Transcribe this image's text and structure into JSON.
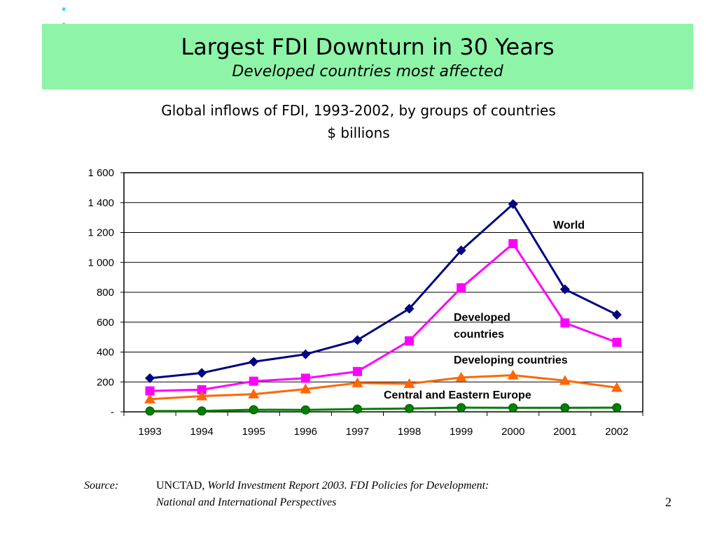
{
  "slide": {
    "title": "Largest FDI Downturn in 30 Years",
    "subtitle": "Developed countries most affected",
    "page_number": "2"
  },
  "chart_data": {
    "type": "line",
    "title": "Global inflows of FDI, 1993-2002, by groups of countries",
    "subtitle": "$ billions",
    "xlabel": "",
    "ylabel": "",
    "ylim": [
      0,
      1600
    ],
    "y_ticks": [
      "-",
      "200",
      "400",
      "600",
      "800",
      "1 000",
      "1 200",
      "1 400",
      "1 600"
    ],
    "categories": [
      "1993",
      "1994",
      "1995",
      "1996",
      "1997",
      "1998",
      "1999",
      "2000",
      "2001",
      "2002"
    ],
    "grid": true,
    "series": [
      {
        "name": "World",
        "color": "#000080",
        "marker": "diamond",
        "values": [
          225,
          260,
          335,
          385,
          480,
          690,
          1080,
          1390,
          820,
          650
        ]
      },
      {
        "name": "Developed countries",
        "color": "#ff00ff",
        "marker": "square",
        "values": [
          140,
          148,
          205,
          225,
          270,
          475,
          830,
          1125,
          595,
          465
        ]
      },
      {
        "name": "Developing countries",
        "color": "#ff6600",
        "marker": "triangle",
        "values": [
          85,
          105,
          118,
          152,
          193,
          188,
          230,
          245,
          209,
          162
        ]
      },
      {
        "name": "Central and Eastern Europe",
        "color": "#008000",
        "marker": "circle",
        "values": [
          5,
          6,
          14,
          13,
          19,
          22,
          28,
          27,
          27,
          28
        ]
      }
    ]
  },
  "source": {
    "label": "Source:",
    "org": "UNCTAD,",
    "line1": "World Investment Report 2003.  FDI Policies for Development:",
    "line2": "National and International Perspectives"
  }
}
